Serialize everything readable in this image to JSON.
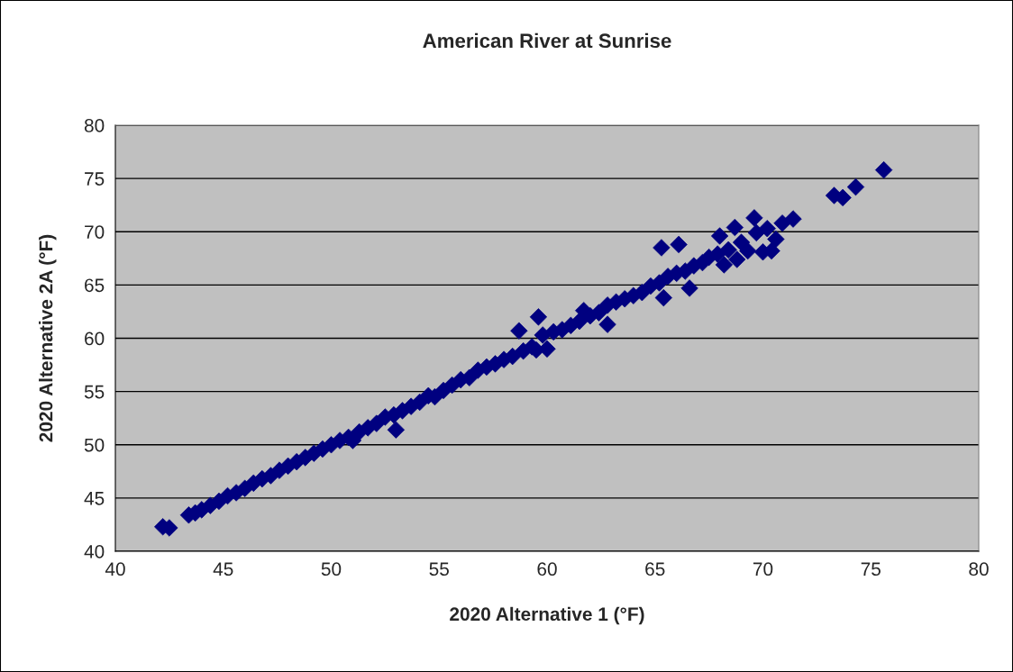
{
  "chart_data": {
    "type": "scatter",
    "title": "American River at Sunrise",
    "xlabel": "2020 Alternative 1 (°F)",
    "ylabel": "2020 Alternative 2A (°F)",
    "xlim": [
      40,
      80
    ],
    "xticks": [
      40,
      45,
      50,
      55,
      60,
      65,
      70,
      75,
      80
    ],
    "ylim": [
      40,
      80
    ],
    "yticks": [
      40,
      45,
      50,
      55,
      60,
      65,
      70,
      75,
      80
    ],
    "grid": "y",
    "marker": "diamond",
    "legend": false,
    "series": [
      {
        "color": "#000080",
        "x": [
          42.2,
          42.5,
          43.4,
          43.7,
          44.0,
          44.4,
          44.8,
          45.2,
          45.6,
          46.0,
          46.4,
          46.8,
          47.2,
          47.6,
          48.0,
          48.4,
          48.8,
          49.2,
          49.6,
          50.0,
          50.4,
          50.8,
          51.0,
          51.3,
          51.7,
          52.1,
          52.5,
          52.9,
          53.0,
          53.3,
          53.7,
          54.1,
          54.5,
          54.8,
          55.2,
          55.6,
          56.0,
          56.4,
          56.8,
          57.2,
          57.6,
          58.0,
          58.4,
          58.7,
          58.9,
          59.3,
          59.6,
          59.5,
          59.8,
          60.0,
          60.3,
          60.7,
          61.1,
          61.5,
          61.7,
          62.0,
          62.4,
          62.8,
          62.8,
          63.2,
          63.6,
          64.0,
          64.4,
          64.8,
          65.2,
          65.3,
          65.4,
          65.6,
          66.0,
          66.1,
          66.4,
          66.6,
          66.8,
          67.2,
          67.5,
          67.9,
          68.0,
          68.2,
          68.4,
          68.7,
          68.8,
          69.0,
          69.3,
          69.6,
          69.7,
          70.0,
          70.2,
          70.4,
          70.6,
          70.9,
          71.4,
          73.3,
          73.7,
          74.3,
          75.6
        ],
        "values": [
          42.3,
          42.2,
          43.4,
          43.6,
          43.9,
          44.3,
          44.7,
          45.2,
          45.5,
          45.9,
          46.4,
          46.8,
          47.1,
          47.6,
          48.0,
          48.4,
          48.8,
          49.2,
          49.6,
          50.0,
          50.4,
          50.7,
          50.4,
          51.2,
          51.6,
          52.0,
          52.6,
          52.8,
          51.4,
          53.2,
          53.6,
          54.0,
          54.6,
          54.5,
          55.1,
          55.6,
          56.1,
          56.3,
          57.0,
          57.3,
          57.6,
          58.0,
          58.3,
          60.7,
          58.8,
          59.2,
          62.0,
          58.9,
          60.3,
          59.0,
          60.6,
          60.8,
          61.2,
          61.6,
          62.6,
          62.1,
          62.4,
          61.3,
          63.1,
          63.4,
          63.7,
          64.0,
          64.3,
          64.9,
          65.2,
          68.5,
          63.8,
          65.8,
          66.1,
          68.8,
          66.3,
          64.7,
          66.8,
          67.1,
          67.6,
          67.9,
          69.6,
          66.9,
          68.3,
          70.4,
          67.4,
          69.0,
          68.2,
          71.3,
          69.9,
          68.1,
          70.3,
          68.2,
          69.3,
          70.8,
          71.2,
          73.4,
          73.2,
          74.2,
          75.8
        ]
      }
    ]
  }
}
